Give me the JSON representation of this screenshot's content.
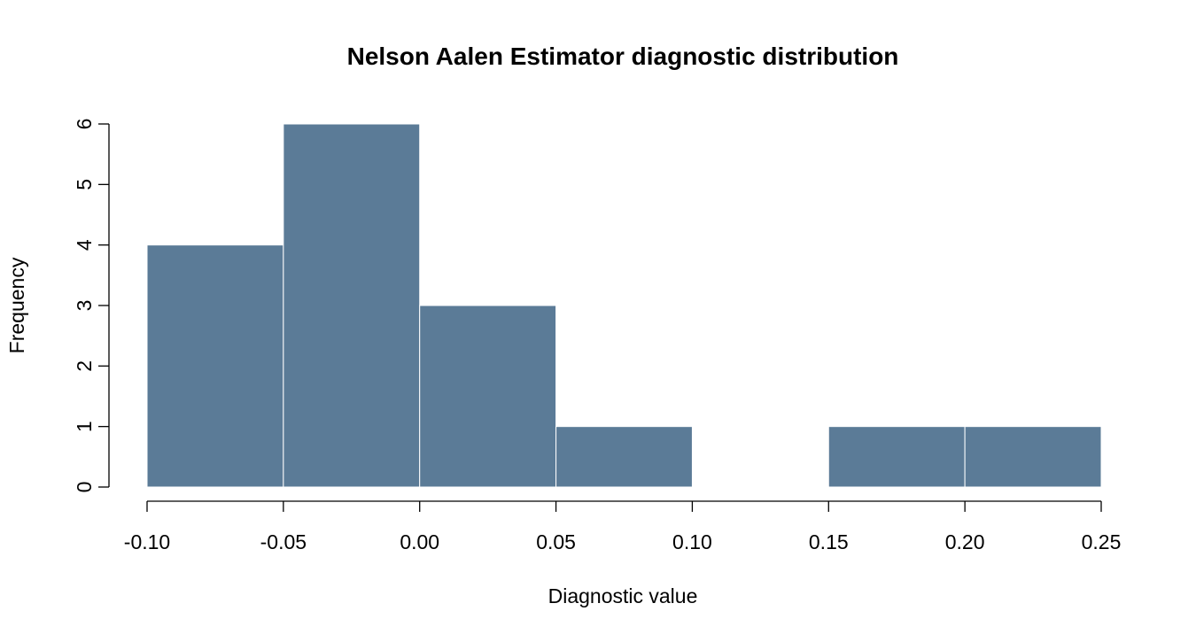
{
  "chart_data": {
    "type": "bar",
    "subtype": "histogram",
    "title": "Nelson Aalen Estimator diagnostic distribution",
    "xlabel": "Diagnostic value",
    "ylabel": "Frequency",
    "bins": [
      {
        "start": -0.1,
        "end": -0.05,
        "count": 4
      },
      {
        "start": -0.05,
        "end": 0.0,
        "count": 6
      },
      {
        "start": 0.0,
        "end": 0.05,
        "count": 3
      },
      {
        "start": 0.05,
        "end": 0.1,
        "count": 1
      },
      {
        "start": 0.1,
        "end": 0.15,
        "count": 0
      },
      {
        "start": 0.15,
        "end": 0.2,
        "count": 1
      },
      {
        "start": 0.2,
        "end": 0.25,
        "count": 1
      }
    ],
    "xlim": [
      -0.1,
      0.25
    ],
    "ylim": [
      0,
      6
    ],
    "xticks": [
      "-0.10",
      "-0.05",
      "0.00",
      "0.05",
      "0.10",
      "0.15",
      "0.20",
      "0.25"
    ],
    "yticks": [
      "0",
      "1",
      "2",
      "3",
      "4",
      "5",
      "6"
    ],
    "bar_color": "#5b7b97",
    "grid": false,
    "legend": "none"
  }
}
